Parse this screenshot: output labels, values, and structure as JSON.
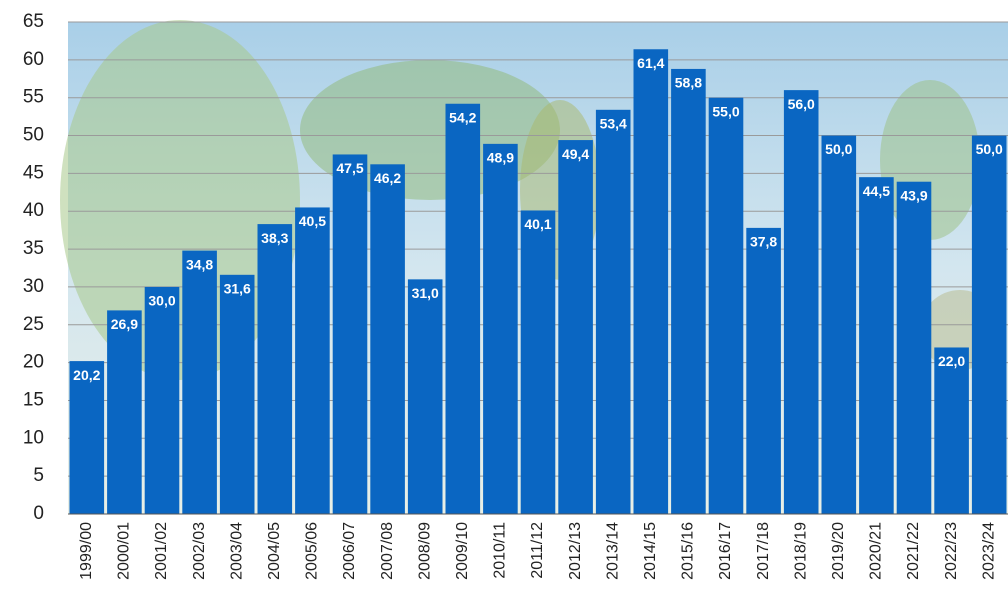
{
  "chart_data": {
    "type": "bar",
    "categories": [
      "1999/00",
      "2000/01",
      "2001/02",
      "2002/03",
      "2003/04",
      "2004/05",
      "2005/06",
      "2006/07",
      "2007/08",
      "2008/09",
      "2009/10",
      "2010/11",
      "2011/12",
      "2012/13",
      "2013/14",
      "2014/15",
      "2015/16",
      "2016/17",
      "2017/18",
      "2018/19",
      "2019/20",
      "2020/21",
      "2021/22",
      "2022/23",
      "2023/24"
    ],
    "values": [
      20.2,
      26.9,
      30.0,
      34.8,
      31.6,
      38.3,
      40.5,
      47.5,
      46.2,
      31.0,
      54.2,
      48.9,
      40.1,
      49.4,
      53.4,
      61.4,
      58.8,
      55.0,
      37.8,
      56.0,
      50.0,
      44.5,
      43.9,
      22.0,
      50.0
    ],
    "value_labels": [
      "20,2",
      "26,9",
      "30,0",
      "34,8",
      "31,6",
      "38,3",
      "40,5",
      "47,5",
      "46,2",
      "31,0",
      "54,2",
      "48,9",
      "40,1",
      "49,4",
      "53,4",
      "61,4",
      "58,8",
      "55,0",
      "37,8",
      "56,0",
      "50,0",
      "44,5",
      "43,9",
      "22,0",
      "50,0"
    ],
    "color": "#0a66c2",
    "ylim": [
      0,
      65
    ],
    "yticks": [
      0,
      5,
      10,
      15,
      20,
      25,
      30,
      35,
      40,
      45,
      50,
      55,
      60,
      65
    ],
    "grid": true
  }
}
